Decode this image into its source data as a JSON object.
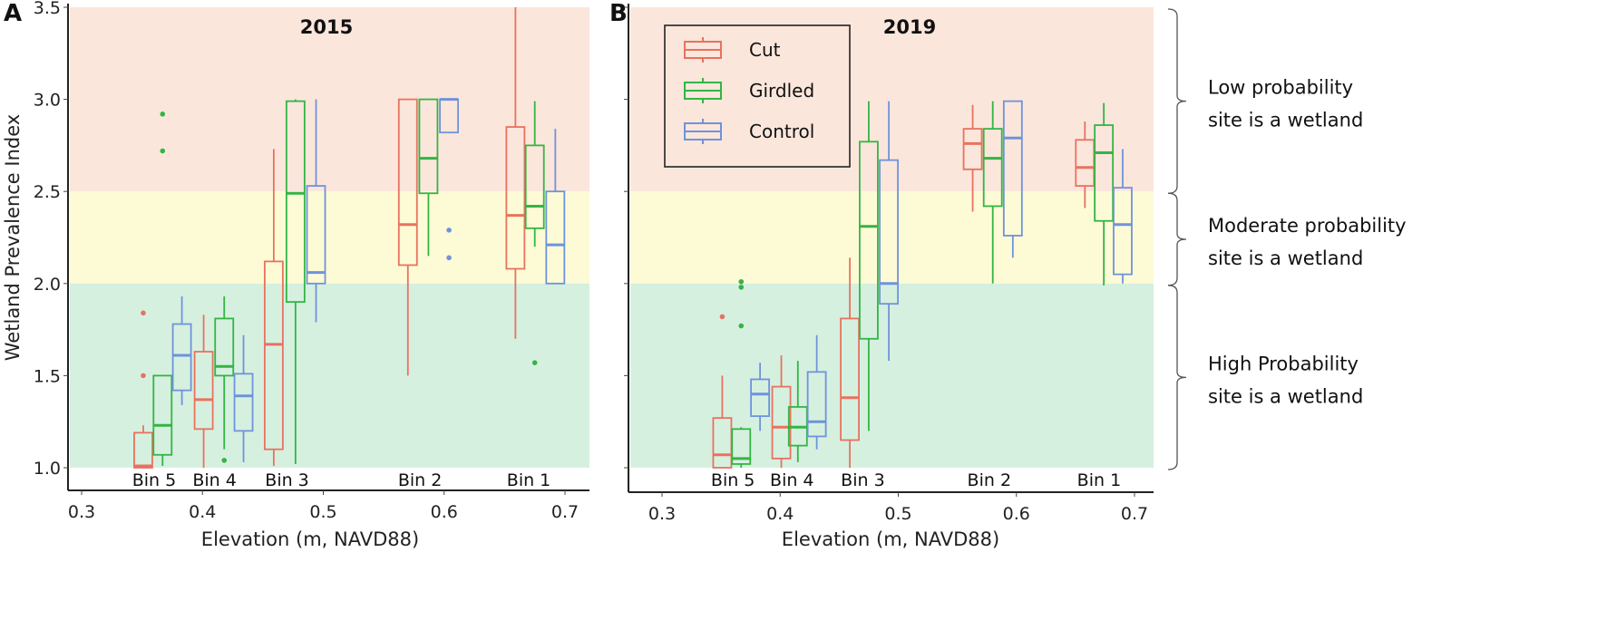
{
  "figure": {
    "panels": [
      "A",
      "B"
    ],
    "annotations": [
      {
        "lines": [
          "Low probability",
          "site is a wetland"
        ],
        "range": [
          2.5,
          3.5
        ]
      },
      {
        "lines": [
          "Moderate probability",
          "site is a wetland"
        ],
        "range": [
          2.0,
          2.5
        ]
      },
      {
        "lines": [
          "High Probability",
          "site is a wetland"
        ],
        "range": [
          1.0,
          2.0
        ]
      }
    ],
    "legend": [
      {
        "name": "Cut",
        "color": "#e8725f"
      },
      {
        "name": "Girdled",
        "color": "#33b544"
      },
      {
        "name": "Control",
        "color": "#6f93db"
      }
    ],
    "bands": [
      {
        "from": 2.5,
        "to": 3.5,
        "color": "#fbe6dc"
      },
      {
        "from": 2.0,
        "to": 2.5,
        "color": "#fdfbd6"
      },
      {
        "from": 1.0,
        "to": 2.0,
        "color": "#d6f0e0"
      }
    ]
  },
  "chart_data": [
    {
      "type": "box",
      "panel": "A",
      "title": "2015",
      "xlabel": "Elevation (m, NAVD88)",
      "ylabel": "Wetland Prevalence Index",
      "xlim": [
        0.28,
        0.71
      ],
      "ylim": [
        0.95,
        3.5
      ],
      "xticks": [
        "0.3",
        "0.4",
        "0.5",
        "0.6",
        "0.7"
      ],
      "xtick_values": [
        0.3,
        0.4,
        0.5,
        0.6,
        0.7
      ],
      "yticks": [
        "1.0",
        "1.5",
        "2.0",
        "2.5",
        "3.0",
        "3.5"
      ],
      "ytick_values": [
        1.0,
        1.5,
        2.0,
        2.5,
        3.0,
        3.5
      ],
      "bins": [
        {
          "label": "Bin 5",
          "x": 0.36
        },
        {
          "label": "Bin 4",
          "x": 0.41
        },
        {
          "label": "Bin 3",
          "x": 0.47
        },
        {
          "label": "Bin 2",
          "x": 0.58
        },
        {
          "label": "Bin 1",
          "x": 0.67
        }
      ],
      "series": [
        {
          "name": "Cut",
          "boxes": [
            {
              "bin": "Bin 5",
              "x": 0.351,
              "whislo": 1.0,
              "q1": 1.0,
              "med": 1.01,
              "q3": 1.19,
              "whishi": 1.23,
              "fliers": [
                1.5,
                1.84
              ]
            },
            {
              "bin": "Bin 4",
              "x": 0.401,
              "whislo": 1.0,
              "q1": 1.21,
              "med": 1.37,
              "q3": 1.63,
              "whishi": 1.83,
              "fliers": []
            },
            {
              "bin": "Bin 3",
              "x": 0.459,
              "whislo": 1.01,
              "q1": 1.1,
              "med": 1.67,
              "q3": 2.12,
              "whishi": 2.73,
              "fliers": []
            },
            {
              "bin": "Bin 2",
              "x": 0.57,
              "whislo": 1.5,
              "q1": 2.1,
              "med": 2.32,
              "q3": 3.0,
              "whishi": 3.0,
              "fliers": []
            },
            {
              "bin": "Bin 1",
              "x": 0.659,
              "whislo": 1.7,
              "q1": 2.08,
              "med": 2.37,
              "q3": 2.85,
              "whishi": 3.5,
              "fliers": []
            }
          ]
        },
        {
          "name": "Girdled",
          "boxes": [
            {
              "bin": "Bin 5",
              "x": 0.367,
              "whislo": 1.01,
              "q1": 1.07,
              "med": 1.23,
              "q3": 1.5,
              "whishi": 1.5,
              "fliers": [
                2.72,
                2.92
              ]
            },
            {
              "bin": "Bin 4",
              "x": 0.418,
              "whislo": 1.1,
              "q1": 1.5,
              "med": 1.55,
              "q3": 1.81,
              "whishi": 1.93,
              "fliers": [
                1.04
              ]
            },
            {
              "bin": "Bin 3",
              "x": 0.477,
              "whislo": 1.02,
              "q1": 1.9,
              "med": 2.49,
              "q3": 2.99,
              "whishi": 3.0,
              "fliers": []
            },
            {
              "bin": "Bin 2",
              "x": 0.587,
              "whislo": 2.15,
              "q1": 2.49,
              "med": 2.68,
              "q3": 3.0,
              "whishi": 3.0,
              "fliers": []
            },
            {
              "bin": "Bin 1",
              "x": 0.675,
              "whislo": 2.2,
              "q1": 2.3,
              "med": 2.42,
              "q3": 2.75,
              "whishi": 2.99,
              "fliers": [
                1.57
              ]
            }
          ]
        },
        {
          "name": "Control",
          "boxes": [
            {
              "bin": "Bin 5",
              "x": 0.383,
              "whislo": 1.34,
              "q1": 1.42,
              "med": 1.61,
              "q3": 1.78,
              "whishi": 1.93,
              "fliers": []
            },
            {
              "bin": "Bin 4",
              "x": 0.434,
              "whislo": 1.03,
              "q1": 1.2,
              "med": 1.39,
              "q3": 1.51,
              "whishi": 1.72,
              "fliers": []
            },
            {
              "bin": "Bin 3",
              "x": 0.494,
              "whislo": 1.79,
              "q1": 2.0,
              "med": 2.06,
              "q3": 2.53,
              "whishi": 3.0,
              "fliers": []
            },
            {
              "bin": "Bin 2",
              "x": 0.604,
              "whislo": 2.82,
              "q1": 2.82,
              "med": 3.0,
              "q3": 3.0,
              "whishi": 3.0,
              "fliers": [
                2.14,
                2.29
              ]
            },
            {
              "bin": "Bin 1",
              "x": 0.692,
              "whislo": 2.0,
              "q1": 2.0,
              "med": 2.21,
              "q3": 2.5,
              "whishi": 2.84,
              "fliers": []
            }
          ]
        }
      ]
    },
    {
      "type": "box",
      "panel": "B",
      "title": "2019",
      "xlabel": "Elevation (m, NAVD88)",
      "ylabel": "",
      "xlim": [
        0.28,
        0.71
      ],
      "ylim": [
        0.95,
        3.5
      ],
      "xticks": [
        "0.3",
        "0.4",
        "0.5",
        "0.6",
        "0.7"
      ],
      "xtick_values": [
        0.3,
        0.4,
        0.5,
        0.6,
        0.7
      ],
      "yticks": [
        "",
        "",
        "",
        "",
        "",
        ""
      ],
      "ytick_values": [
        1.0,
        1.5,
        2.0,
        2.5,
        3.0,
        3.5
      ],
      "bins": [
        {
          "label": "Bin 5",
          "x": 0.36
        },
        {
          "label": "Bin 4",
          "x": 0.41
        },
        {
          "label": "Bin 3",
          "x": 0.47
        },
        {
          "label": "Bin 2",
          "x": 0.577
        },
        {
          "label": "Bin 1",
          "x": 0.67
        }
      ],
      "series": [
        {
          "name": "Cut",
          "boxes": [
            {
              "bin": "Bin 5",
              "x": 0.351,
              "whislo": 1.0,
              "q1": 1.0,
              "med": 1.07,
              "q3": 1.27,
              "whishi": 1.5,
              "fliers": [
                1.82
              ]
            },
            {
              "bin": "Bin 4",
              "x": 0.401,
              "whislo": 1.0,
              "q1": 1.05,
              "med": 1.22,
              "q3": 1.44,
              "whishi": 1.61,
              "fliers": []
            },
            {
              "bin": "Bin 3",
              "x": 0.459,
              "whislo": 1.0,
              "q1": 1.15,
              "med": 1.38,
              "q3": 1.81,
              "whishi": 2.14,
              "fliers": []
            },
            {
              "bin": "Bin 2",
              "x": 0.563,
              "whislo": 2.39,
              "q1": 2.62,
              "med": 2.76,
              "q3": 2.84,
              "whishi": 2.97,
              "fliers": []
            },
            {
              "bin": "Bin 1",
              "x": 0.658,
              "whislo": 2.41,
              "q1": 2.53,
              "med": 2.63,
              "q3": 2.78,
              "whishi": 2.88,
              "fliers": []
            }
          ]
        },
        {
          "name": "Girdled",
          "boxes": [
            {
              "bin": "Bin 5",
              "x": 0.367,
              "whislo": 1.0,
              "q1": 1.02,
              "med": 1.05,
              "q3": 1.21,
              "whishi": 1.22,
              "fliers": [
                1.77,
                1.98,
                2.01
              ]
            },
            {
              "bin": "Bin 4",
              "x": 0.415,
              "whislo": 1.03,
              "q1": 1.12,
              "med": 1.22,
              "q3": 1.33,
              "whishi": 1.58,
              "fliers": []
            },
            {
              "bin": "Bin 3",
              "x": 0.475,
              "whislo": 1.2,
              "q1": 1.7,
              "med": 2.31,
              "q3": 2.77,
              "whishi": 2.99,
              "fliers": []
            },
            {
              "bin": "Bin 2",
              "x": 0.58,
              "whislo": 2.0,
              "q1": 2.42,
              "med": 2.68,
              "q3": 2.84,
              "whishi": 2.99,
              "fliers": []
            },
            {
              "bin": "Bin 1",
              "x": 0.674,
              "whislo": 1.99,
              "q1": 2.34,
              "med": 2.71,
              "q3": 2.86,
              "whishi": 2.98,
              "fliers": []
            }
          ]
        },
        {
          "name": "Control",
          "boxes": [
            {
              "bin": "Bin 5",
              "x": 0.383,
              "whislo": 1.2,
              "q1": 1.28,
              "med": 1.4,
              "q3": 1.48,
              "whishi": 1.57,
              "fliers": []
            },
            {
              "bin": "Bin 4",
              "x": 0.431,
              "whislo": 1.1,
              "q1": 1.17,
              "med": 1.25,
              "q3": 1.52,
              "whishi": 1.72,
              "fliers": []
            },
            {
              "bin": "Bin 3",
              "x": 0.492,
              "whislo": 1.58,
              "q1": 1.89,
              "med": 2.0,
              "q3": 2.67,
              "whishi": 2.99,
              "fliers": []
            },
            {
              "bin": "Bin 2",
              "x": 0.597,
              "whislo": 2.14,
              "q1": 2.26,
              "med": 2.79,
              "q3": 2.99,
              "whishi": 2.99,
              "fliers": []
            },
            {
              "bin": "Bin 1",
              "x": 0.69,
              "whislo": 2.0,
              "q1": 2.05,
              "med": 2.32,
              "q3": 2.52,
              "whishi": 2.73,
              "fliers": []
            }
          ]
        }
      ]
    }
  ]
}
